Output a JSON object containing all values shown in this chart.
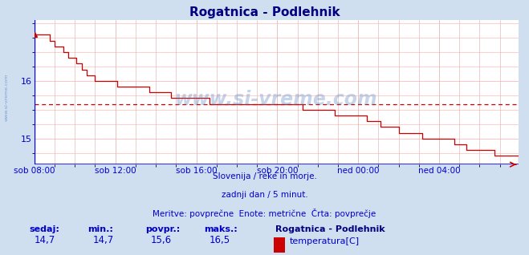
{
  "title": "Rogatnica - Podlehnik",
  "title_color": "#000080",
  "bg_color": "#d0dff0",
  "plot_bg_color": "#ffffff",
  "line_color": "#cc0000",
  "grid_color": "#ffaaaa",
  "grid_v_color": "#ddaaaa",
  "axis_color": "#0000cc",
  "avg_line_color": "#cc0000",
  "avg_line_value": 15.6,
  "x_tick_labels": [
    "sob 08:00",
    "sob 12:00",
    "sob 16:00",
    "sob 20:00",
    "ned 00:00",
    "ned 04:00"
  ],
  "x_tick_positions": [
    0,
    48,
    96,
    144,
    192,
    240
  ],
  "y_ticks": [
    15.0,
    16.0
  ],
  "y_min": 14.55,
  "y_max": 17.05,
  "subtitle_lines": [
    "Slovenija / reke in morje.",
    "zadnji dan / 5 minut.",
    "Meritve: povprečne  Enote: metrične  Črta: povprečje"
  ],
  "footer_labels": [
    "sedaj:",
    "min.:",
    "povpr.:",
    "maks.:"
  ],
  "footer_values": [
    "14,7",
    "14,7",
    "15,6",
    "16,5"
  ],
  "legend_name": "Rogatnica - Podlehnik",
  "legend_series": "temperatura[C]",
  "legend_color": "#cc0000",
  "watermark": "www.si-vreme.com",
  "watermark_color": "#4477bb",
  "watermark_alpha": 0.3,
  "total_steps": 288
}
